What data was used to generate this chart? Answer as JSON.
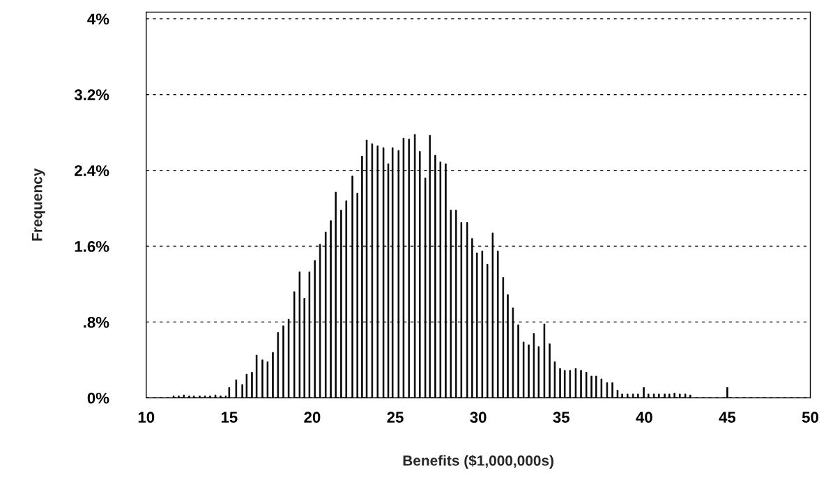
{
  "chart_data": {
    "type": "bar",
    "xlabel": "Benefits ($1,000,000s)",
    "ylabel": "Frequency",
    "color": "#000000",
    "x": [
      11.65,
      11.96,
      12.27,
      12.59,
      12.87,
      13.22,
      13.54,
      13.85,
      14.17,
      14.48,
      14.79,
      15.0,
      15.42,
      15.79,
      16.05,
      16.37,
      16.65,
      17.0,
      17.31,
      17.63,
      17.94,
      18.26,
      18.58,
      18.92,
      19.24,
      19.53,
      19.83,
      20.16,
      20.47,
      20.81,
      21.12,
      21.42,
      21.74,
      22.05,
      22.42,
      22.72,
      23.0,
      23.28,
      23.61,
      23.94,
      24.29,
      24.58,
      24.84,
      25.2,
      25.5,
      25.83,
      26.18,
      26.48,
      26.81,
      27.09,
      27.41,
      27.72,
      28.04,
      28.35,
      28.66,
      28.98,
      29.33,
      29.63,
      29.92,
      30.24,
      30.55,
      30.87,
      31.18,
      31.5,
      31.78,
      32.09,
      32.41,
      32.73,
      33.04,
      33.35,
      33.64,
      33.98,
      34.3,
      34.61,
      34.93,
      35.21,
      35.53,
      35.87,
      36.19,
      36.51,
      36.82,
      37.1,
      37.42,
      37.76,
      38.08,
      38.39,
      38.67,
      38.99,
      39.32,
      39.62,
      39.97,
      40.25,
      40.58,
      40.88,
      41.23,
      41.51,
      41.82,
      42.14,
      42.47,
      42.77,
      45.0
    ],
    "values": [
      0.02,
      0.02,
      0.03,
      0.02,
      0.02,
      0.02,
      0.02,
      0.02,
      0.03,
      0.02,
      0.02,
      0.11,
      0.19,
      0.14,
      0.25,
      0.27,
      0.45,
      0.4,
      0.38,
      0.48,
      0.69,
      0.76,
      0.83,
      1.12,
      1.33,
      1.05,
      1.33,
      1.45,
      1.62,
      1.75,
      1.87,
      2.17,
      1.98,
      2.08,
      2.34,
      2.16,
      2.55,
      2.72,
      2.68,
      2.66,
      2.64,
      2.47,
      2.64,
      2.61,
      2.74,
      2.73,
      2.78,
      2.6,
      2.32,
      2.77,
      2.56,
      2.49,
      2.47,
      1.98,
      1.98,
      1.85,
      1.85,
      1.68,
      1.53,
      1.55,
      1.41,
      1.74,
      1.55,
      1.27,
      1.09,
      0.95,
      0.77,
      0.59,
      0.56,
      0.68,
      0.54,
      0.78,
      0.57,
      0.38,
      0.31,
      0.29,
      0.29,
      0.31,
      0.29,
      0.27,
      0.23,
      0.23,
      0.2,
      0.16,
      0.16,
      0.08,
      0.04,
      0.04,
      0.04,
      0.04,
      0.11,
      0.04,
      0.04,
      0.04,
      0.04,
      0.04,
      0.05,
      0.04,
      0.04,
      0.03,
      0.11
    ],
    "xlim": [
      10,
      50
    ],
    "xticks": [
      10,
      15,
      20,
      25,
      30,
      35,
      40,
      45,
      50
    ],
    "ylim": [
      0,
      4.07
    ],
    "yticks": [
      {
        "value": 0,
        "label": "0%"
      },
      {
        "value": 0.8,
        "label": ".8%"
      },
      {
        "value": 1.6,
        "label": "1.6%"
      },
      {
        "value": 2.4,
        "label": "2.4%"
      },
      {
        "value": 3.2,
        "label": "3.2%"
      },
      {
        "value": 4,
        "label": "4%"
      }
    ],
    "grid": "y",
    "legend": false
  }
}
